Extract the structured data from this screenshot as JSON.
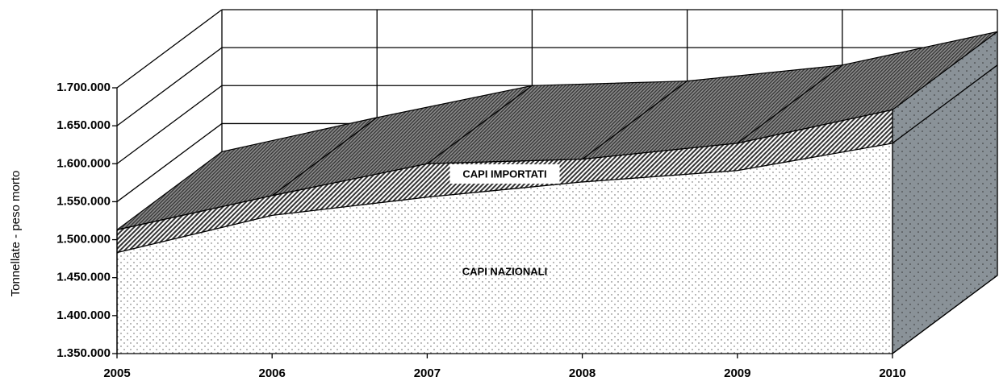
{
  "chart_data": {
    "type": "area3d",
    "y_label": "Tonnellate - peso morto",
    "categories": [
      "2005",
      "2006",
      "2007",
      "2008",
      "2009",
      "2010"
    ],
    "series": [
      {
        "name": "CAPI NAZIONALI",
        "color": "#ffffff",
        "values": [
          1483000,
          1532000,
          1556000,
          1576000,
          1591000,
          1627000
        ]
      },
      {
        "name": "CAPI IMPORTATI",
        "color": "#8a8a8a",
        "values": [
          30000,
          26000,
          44000,
          30000,
          36000,
          44000
        ]
      }
    ],
    "ylim": [
      1350000,
      1700000
    ],
    "yticks": [
      {
        "value": 1350000,
        "label": "1.350.000"
      },
      {
        "value": 1400000,
        "label": "1.400.000"
      },
      {
        "value": 1450000,
        "label": "1.450.000"
      },
      {
        "value": 1500000,
        "label": "1.500.000"
      },
      {
        "value": 1550000,
        "label": "1.550.000"
      },
      {
        "value": 1600000,
        "label": "1.600.000"
      },
      {
        "value": 1650000,
        "label": "1.650.000"
      },
      {
        "value": 1700000,
        "label": "1.700.000"
      }
    ],
    "grid": true
  }
}
